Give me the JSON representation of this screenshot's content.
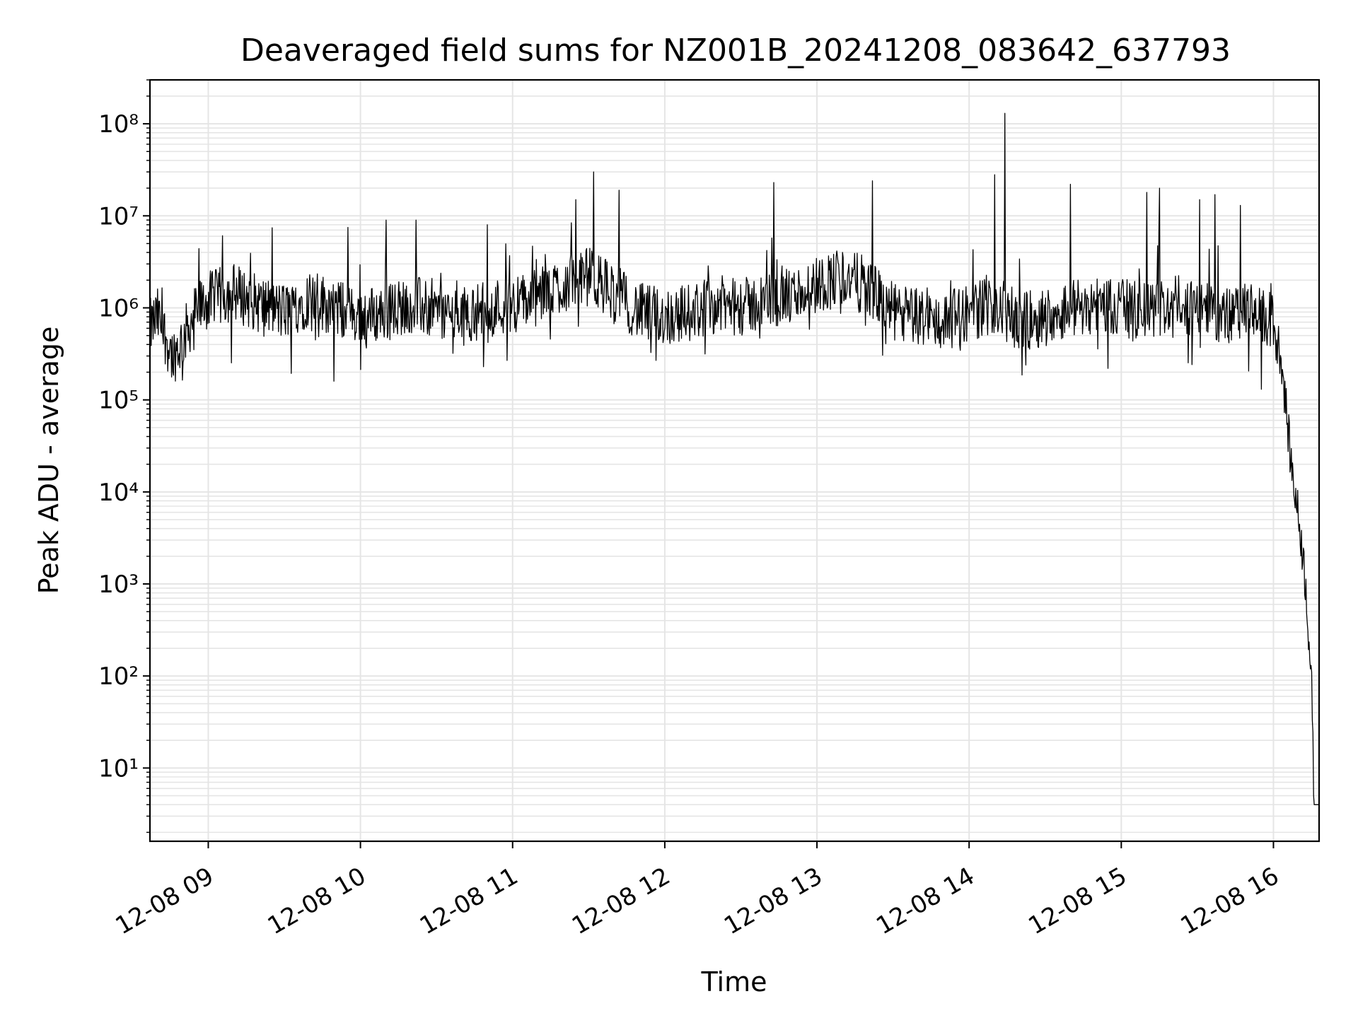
{
  "chart_data": {
    "type": "line",
    "title": "Deaveraged field sums for NZ001B_20241208_083642_637793",
    "xlabel": "Time",
    "ylabel": "Peak ADU - average",
    "yscale": "log",
    "ylim": [
      1.6,
      300000000
    ],
    "xlim": [
      "2024-12-08 08:37",
      "2024-12-08 16:18"
    ],
    "grid": "on",
    "legend": "none",
    "line_color": "#000000",
    "grid_color": "#e5e5e5",
    "x_ticks": [
      "12-08 09",
      "12-08 10",
      "12-08 11",
      "12-08 12",
      "12-08 13",
      "12-08 14",
      "12-08 15",
      "12-08 16"
    ],
    "y_ticks": [
      "10¹",
      "10²",
      "10³",
      "10⁴",
      "10⁵",
      "10⁶",
      "10⁷",
      "10⁸"
    ],
    "series": [
      {
        "x": [
          "2024-12-08 08:37",
          "2024-12-08 08:40",
          "2024-12-08 08:43",
          "2024-12-08 08:46",
          "2024-12-08 08:49",
          "2024-12-08 08:52",
          "2024-12-08 08:55",
          "2024-12-08 09:00",
          "2024-12-08 09:10",
          "2024-12-08 09:20",
          "2024-12-08 09:30",
          "2024-12-08 09:40",
          "2024-12-08 09:50",
          "2024-12-08 10:00",
          "2024-12-08 10:10",
          "2024-12-08 10:20",
          "2024-12-08 10:30",
          "2024-12-08 10:40",
          "2024-12-08 10:50",
          "2024-12-08 11:00",
          "2024-12-08 11:10",
          "2024-12-08 11:20",
          "2024-12-08 11:30",
          "2024-12-08 11:40",
          "2024-12-08 11:50",
          "2024-12-08 12:00",
          "2024-12-08 12:10",
          "2024-12-08 12:20",
          "2024-12-08 12:30",
          "2024-12-08 12:40",
          "2024-12-08 12:50",
          "2024-12-08 13:00",
          "2024-12-08 13:10",
          "2024-12-08 13:20",
          "2024-12-08 13:30",
          "2024-12-08 13:40",
          "2024-12-08 13:50",
          "2024-12-08 14:00",
          "2024-12-08 14:10",
          "2024-12-08 14:20",
          "2024-12-08 14:30",
          "2024-12-08 14:40",
          "2024-12-08 14:50",
          "2024-12-08 15:00",
          "2024-12-08 15:10",
          "2024-12-08 15:20",
          "2024-12-08 15:30",
          "2024-12-08 15:40",
          "2024-12-08 15:50",
          "2024-12-08 16:00",
          "2024-12-08 16:03",
          "2024-12-08 16:05",
          "2024-12-08 16:07",
          "2024-12-08 16:09",
          "2024-12-08 16:11",
          "2024-12-08 16:13",
          "2024-12-08 16:15",
          "2024-12-08 16:16",
          "2024-12-08 16:18"
        ],
        "y": [
          600000,
          800000,
          500000,
          300000,
          400000,
          600000,
          900000,
          1200000,
          1500000,
          1100000,
          900000,
          1300000,
          1000000,
          800000,
          900000,
          1100000,
          900000,
          800000,
          1000000,
          1100000,
          1300000,
          1800000,
          2200000,
          1500000,
          900000,
          800000,
          900000,
          1100000,
          1000000,
          1200000,
          1300000,
          1800000,
          2200000,
          1700000,
          900000,
          800000,
          700000,
          900000,
          1100000,
          700000,
          800000,
          1000000,
          1100000,
          1000000,
          900000,
          1100000,
          1000000,
          800000,
          900000,
          700000,
          300000,
          80000,
          20000,
          8000,
          3000,
          800,
          80,
          4,
          4
        ]
      }
    ],
    "spikes": [
      {
        "x": "2024-12-08 09:55",
        "y": 7500000
      },
      {
        "x": "2024-12-08 10:10",
        "y": 9000000
      },
      {
        "x": "2024-12-08 10:22",
        "y": 9000000
      },
      {
        "x": "2024-12-08 10:50",
        "y": 8000000
      },
      {
        "x": "2024-12-08 11:25",
        "y": 15000000
      },
      {
        "x": "2024-12-08 11:32",
        "y": 30000000
      },
      {
        "x": "2024-12-08 11:42",
        "y": 19000000
      },
      {
        "x": "2024-12-08 12:43",
        "y": 23000000
      },
      {
        "x": "2024-12-08 13:22",
        "y": 24000000
      },
      {
        "x": "2024-12-08 14:10",
        "y": 28000000
      },
      {
        "x": "2024-12-08 14:14",
        "y": 130000000
      },
      {
        "x": "2024-12-08 14:40",
        "y": 22000000
      },
      {
        "x": "2024-12-08 15:10",
        "y": 18000000
      },
      {
        "x": "2024-12-08 15:15",
        "y": 20000000
      },
      {
        "x": "2024-12-08 15:31",
        "y": 15000000
      },
      {
        "x": "2024-12-08 15:37",
        "y": 17000000
      },
      {
        "x": "2024-12-08 15:47",
        "y": 13000000
      }
    ]
  }
}
